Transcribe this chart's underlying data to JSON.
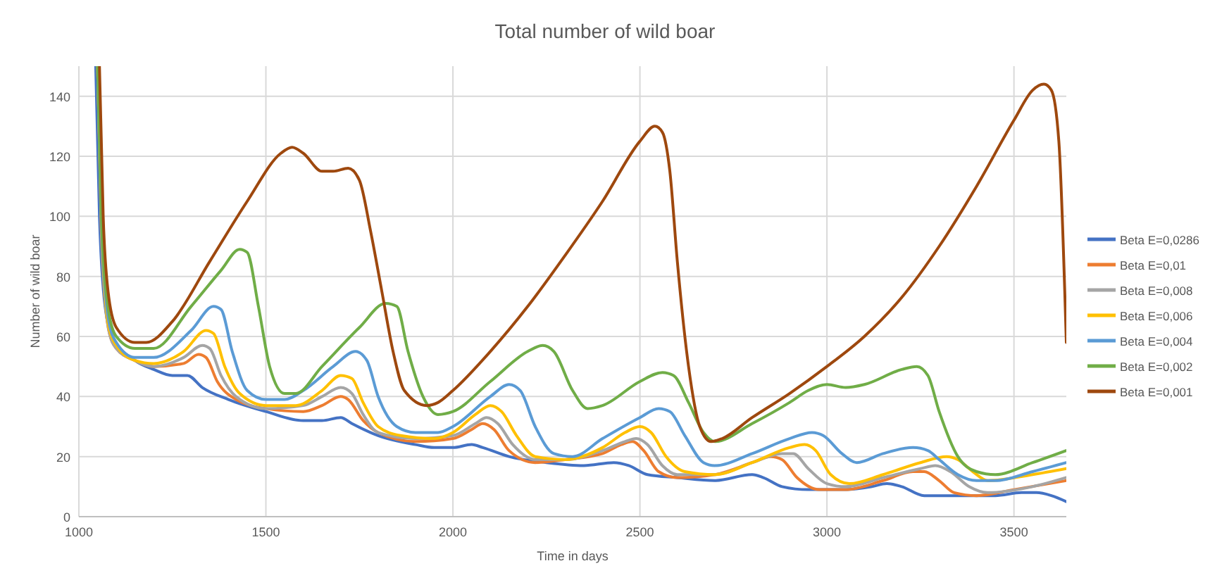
{
  "chart_data": {
    "type": "line",
    "title": "Total number of wild boar",
    "xlabel": "Time in days",
    "ylabel": "Number of wild boar",
    "xlim": [
      1000,
      3640
    ],
    "xticks": [
      1000,
      1500,
      2000,
      2500,
      3000,
      3500
    ],
    "ylim": [
      0,
      150
    ],
    "yticks": [
      0,
      20,
      40,
      60,
      80,
      100,
      120,
      140
    ],
    "grid": true,
    "legend": "right",
    "marker": "none",
    "line_style": "solid",
    "series": [
      {
        "name": "Beta E=0,0286",
        "color": "#4472c4",
        "x": [
          1045,
          1055,
          1070,
          1090,
          1150,
          1200,
          1250,
          1290,
          1330,
          1400,
          1500,
          1600,
          1650,
          1700,
          1730,
          1800,
          1900,
          1950,
          2000,
          2050,
          2080,
          2150,
          2250,
          2350,
          2430,
          2470,
          2520,
          2600,
          2700,
          2800,
          2830,
          2880,
          2950,
          3050,
          3120,
          3160,
          3200,
          3260,
          3350,
          3450,
          3520,
          3560,
          3600,
          3640
        ],
        "values": [
          150,
          100,
          70,
          60,
          52,
          49,
          47,
          47,
          43,
          39,
          35,
          32,
          32,
          33,
          31,
          27,
          24,
          23,
          23,
          24,
          23,
          20,
          18,
          17,
          18,
          17,
          14,
          13,
          12,
          14,
          13,
          10,
          9,
          9,
          10,
          11,
          10,
          7,
          7,
          7,
          8,
          8,
          7,
          5
        ]
      },
      {
        "name": "Beta E=0,01",
        "color": "#ed7d31",
        "x": [
          1050,
          1060,
          1080,
          1100,
          1150,
          1200,
          1280,
          1320,
          1340,
          1370,
          1420,
          1500,
          1600,
          1650,
          1700,
          1720,
          1760,
          1800,
          1900,
          2000,
          2050,
          2080,
          2110,
          2150,
          2220,
          2300,
          2400,
          2450,
          2480,
          2510,
          2550,
          2600,
          2700,
          2800,
          2850,
          2880,
          2920,
          2980,
          3050,
          3150,
          3230,
          3260,
          3300,
          3340,
          3400,
          3500,
          3640
        ],
        "values": [
          150,
          95,
          62,
          56,
          52,
          50,
          51,
          54,
          53,
          45,
          39,
          36,
          35,
          37,
          40,
          39,
          32,
          28,
          25,
          26,
          29,
          31,
          29,
          22,
          18,
          19,
          21,
          24,
          25,
          22,
          15,
          13,
          14,
          18,
          20,
          19,
          13,
          9,
          9,
          12,
          15,
          15,
          12,
          8,
          7,
          9,
          12
        ]
      },
      {
        "name": "Beta E=0,008",
        "color": "#a5a5a5",
        "x": [
          1050,
          1060,
          1080,
          1100,
          1150,
          1200,
          1280,
          1330,
          1350,
          1380,
          1420,
          1500,
          1600,
          1650,
          1700,
          1730,
          1760,
          1800,
          1900,
          2000,
          2060,
          2090,
          2120,
          2160,
          2220,
          2300,
          2400,
          2460,
          2490,
          2520,
          2560,
          2600,
          2700,
          2800,
          2880,
          2910,
          2950,
          3000,
          3050,
          3150,
          3250,
          3290,
          3330,
          3380,
          3430,
          3550,
          3640
        ],
        "values": [
          150,
          95,
          62,
          56,
          52,
          50,
          53,
          57,
          56,
          47,
          40,
          36,
          37,
          40,
          43,
          41,
          34,
          28,
          26,
          27,
          31,
          33,
          31,
          24,
          19,
          19,
          22,
          25,
          26,
          24,
          17,
          14,
          14,
          18,
          21,
          21,
          16,
          11,
          10,
          13,
          16,
          17,
          15,
          10,
          8,
          10,
          13
        ]
      },
      {
        "name": "Beta E=0,006",
        "color": "#ffc000",
        "x": [
          1050,
          1060,
          1080,
          1100,
          1150,
          1200,
          1280,
          1340,
          1360,
          1390,
          1430,
          1500,
          1580,
          1650,
          1700,
          1730,
          1760,
          1800,
          1860,
          1950,
          2000,
          2060,
          2100,
          2130,
          2170,
          2220,
          2300,
          2400,
          2460,
          2500,
          2530,
          2570,
          2620,
          2700,
          2800,
          2900,
          2940,
          2970,
          3010,
          3060,
          3150,
          3250,
          3320,
          3350,
          3390,
          3430,
          3550,
          3640
        ],
        "values": [
          150,
          100,
          63,
          57,
          52,
          51,
          55,
          62,
          61,
          50,
          41,
          37,
          37,
          42,
          47,
          46,
          38,
          30,
          27,
          26,
          28,
          34,
          37,
          35,
          27,
          20,
          19,
          23,
          28,
          30,
          28,
          20,
          15,
          14,
          18,
          23,
          24,
          22,
          14,
          11,
          14,
          18,
          20,
          19,
          15,
          12,
          14,
          16
        ]
      },
      {
        "name": "Beta E=0,004",
        "color": "#5b9bd5",
        "x": [
          1050,
          1060,
          1080,
          1100,
          1150,
          1200,
          1300,
          1360,
          1380,
          1410,
          1450,
          1500,
          1550,
          1600,
          1680,
          1740,
          1770,
          1800,
          1850,
          1900,
          1960,
          2000,
          2100,
          2150,
          2180,
          2220,
          2270,
          2320,
          2400,
          2500,
          2550,
          2580,
          2620,
          2670,
          2700,
          2800,
          2900,
          2960,
          2990,
          3040,
          3080,
          3150,
          3230,
          3270,
          3300,
          3350,
          3400,
          3450,
          3550,
          3640
        ],
        "values": [
          150,
          100,
          65,
          58,
          53,
          53,
          62,
          70,
          69,
          55,
          42,
          39,
          39,
          42,
          50,
          55,
          52,
          40,
          30,
          28,
          28,
          30,
          40,
          44,
          42,
          30,
          21,
          20,
          26,
          33,
          36,
          35,
          27,
          18,
          17,
          21,
          26,
          28,
          27,
          21,
          18,
          21,
          23,
          22,
          19,
          14,
          12,
          12,
          15,
          18
        ]
      },
      {
        "name": "Beta E=0,002",
        "color": "#70ad47",
        "x": [
          1050,
          1060,
          1080,
          1100,
          1150,
          1200,
          1300,
          1380,
          1430,
          1450,
          1480,
          1510,
          1550,
          1580,
          1650,
          1750,
          1820,
          1850,
          1880,
          1920,
          1960,
          2000,
          2100,
          2200,
          2240,
          2270,
          2320,
          2360,
          2400,
          2500,
          2560,
          2590,
          2630,
          2670,
          2700,
          2800,
          2900,
          2950,
          3000,
          3050,
          3100,
          3200,
          3240,
          3270,
          3300,
          3350,
          3400,
          3450,
          3550,
          3640
        ],
        "values": [
          150,
          100,
          68,
          60,
          56,
          56,
          70,
          82,
          89,
          88,
          70,
          50,
          41,
          41,
          50,
          63,
          71,
          70,
          55,
          40,
          34,
          35,
          45,
          55,
          57,
          55,
          42,
          36,
          37,
          45,
          48,
          47,
          38,
          28,
          25,
          31,
          38,
          42,
          44,
          43,
          44,
          49,
          50,
          47,
          35,
          20,
          15,
          14,
          18,
          22
        ]
      },
      {
        "name": "Beta E=0,001",
        "color": "#9e480e",
        "x": [
          1055,
          1065,
          1078,
          1100,
          1150,
          1180,
          1250,
          1350,
          1450,
          1540,
          1570,
          1600,
          1650,
          1680,
          1720,
          1750,
          1780,
          1810,
          1840,
          1870,
          1930,
          1960,
          2000,
          2100,
          2200,
          2300,
          2400,
          2500,
          2540,
          2560,
          2580,
          2600,
          2630,
          2660,
          2690,
          2720,
          2800,
          2900,
          3000,
          3100,
          3200,
          3300,
          3400,
          3500,
          3550,
          3580,
          3600,
          3620,
          3640
        ],
        "values": [
          150,
          100,
          75,
          63,
          58,
          58,
          65,
          85,
          105,
          121,
          123,
          121,
          115,
          115,
          116,
          112,
          95,
          75,
          55,
          42,
          37,
          38,
          42,
          55,
          70,
          87,
          105,
          125,
          130,
          128,
          115,
          85,
          50,
          30,
          25,
          26,
          33,
          41,
          50,
          60,
          73,
          90,
          110,
          132,
          142,
          144,
          142,
          125,
          58
        ]
      }
    ]
  }
}
